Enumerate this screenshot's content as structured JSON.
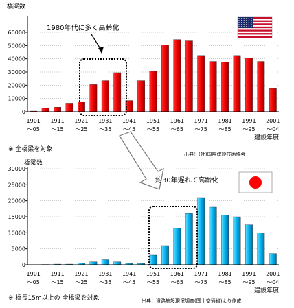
{
  "chart_data": [
    {
      "type": "bar",
      "ylabel": "橋梁数",
      "ylim": [
        0,
        60000
      ],
      "yticks": [
        "0",
        "10000",
        "20000",
        "30000",
        "40000",
        "50000",
        "60000"
      ],
      "xticks_top": [
        "1901",
        "1911",
        "1921",
        "1931",
        "1941",
        "1951",
        "1961",
        "1971",
        "1981",
        "1991",
        "2001"
      ],
      "xticks_bottom": [
        "～05",
        "～15",
        "～25",
        "～35",
        "～45",
        "～55",
        "～65",
        "～75",
        "～85",
        "～95",
        "～04"
      ],
      "xlabel": "建設年度",
      "values": [
        500,
        3000,
        3500,
        6500,
        7500,
        20500,
        23500,
        29500,
        8500,
        23500,
        30500,
        50500,
        54500,
        53500,
        42500,
        38000,
        37500,
        42500,
        40500,
        38000,
        17500
      ],
      "bar_color": "#ff0000",
      "annotation": "1980年代に多く高齢化",
      "note": "※ 全橋梁を対象",
      "source": "出典：(社)国際建設技術協会",
      "flag": "us-flag"
    },
    {
      "type": "bar",
      "ylabel": "橋梁数",
      "ylim": [
        0,
        30000
      ],
      "yticks": [
        "0",
        "5000",
        "10000",
        "15000",
        "20000",
        "25000",
        "30000"
      ],
      "xticks_top": [
        "1901",
        "1911",
        "1921",
        "1931",
        "1941",
        "1951",
        "1961",
        "1971",
        "1981",
        "1991",
        "2001"
      ],
      "xticks_bottom": [
        "～05",
        "～15",
        "～25",
        "～35",
        "～45",
        "～55",
        "～65",
        "～75",
        "～85",
        "～95",
        "～04"
      ],
      "xlabel": "建設年度",
      "values": [
        50,
        100,
        200,
        200,
        500,
        900,
        1600,
        900,
        400,
        400,
        3000,
        6000,
        11500,
        16000,
        21000,
        18000,
        15500,
        15000,
        12500,
        10000,
        3500
      ],
      "bar_color": "#00b0f0",
      "annotation": "約30年遅れて高齢化",
      "note": "※ 橋長15m以上の 全橋梁を対象",
      "source": "出典：道路施設現況調査(国土交通省)より作成",
      "flag": "japan-flag"
    }
  ]
}
